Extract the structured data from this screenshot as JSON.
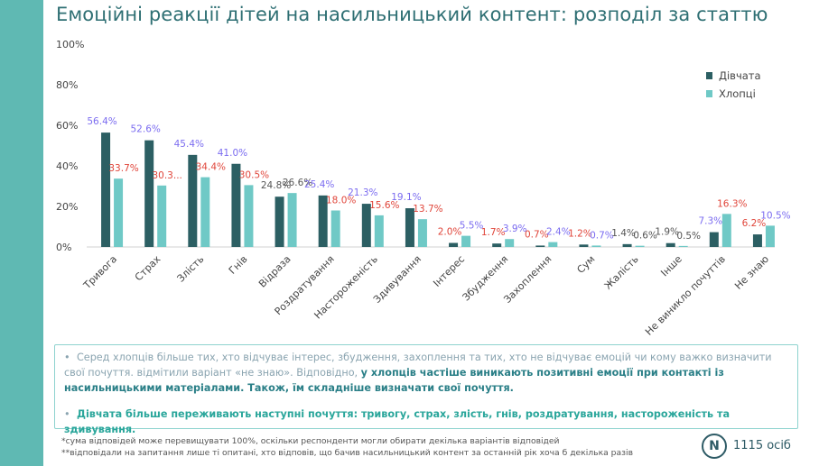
{
  "title": "Емоційні реакції дітей на насильницький контент: розподіл за статтю",
  "chart_data": {
    "type": "bar",
    "ylim": [
      0,
      100
    ],
    "y_ticks": [
      "0%",
      "20%",
      "40%",
      "60%",
      "80%",
      "100%"
    ],
    "y_tick_values": [
      0,
      20,
      40,
      60,
      80,
      100
    ],
    "grid": false,
    "legend_position": "top-right",
    "categories": [
      "Тривога",
      "Страх",
      "Злість",
      "Гнів",
      "Відраза",
      "Роздратування",
      "Настороженість",
      "Здивування",
      "Інтерес",
      "Збудження",
      "Захоплення",
      "Сум",
      "Жалість",
      "Інше",
      "Не виникло почуттів",
      "Не знаю"
    ],
    "series": [
      {
        "name": "Дівчата",
        "color": "#2c5f63",
        "values": [
          56.4,
          52.6,
          45.4,
          41.0,
          24.8,
          25.4,
          21.3,
          19.1,
          2.0,
          1.7,
          0.7,
          1.2,
          1.4,
          1.9,
          7.3,
          6.2
        ],
        "labels": [
          "56.4%",
          "52.6%",
          "45.4%",
          "41.0%",
          "24.8%",
          "25.4%",
          "21.3%",
          "19.1%",
          "2.0%",
          "1.7%",
          "0.7%",
          "1.2%",
          "1.4%",
          "1.9%",
          "7.3%",
          "6.2%"
        ],
        "label_colors": [
          "#7b6cf0",
          "#7b6cf0",
          "#7b6cf0",
          "#7b6cf0",
          "#555555",
          "#7b6cf0",
          "#7b6cf0",
          "#7b6cf0",
          "#e0453a",
          "#e0453a",
          "#e0453a",
          "#e0453a",
          "#555555",
          "#555555",
          "#7b6cf0",
          "#e0453a"
        ]
      },
      {
        "name": "Хлопці",
        "color": "#6fc9c6",
        "values": [
          33.7,
          30.3,
          34.4,
          30.5,
          26.6,
          18.0,
          15.6,
          13.7,
          5.5,
          3.9,
          2.4,
          0.7,
          0.6,
          0.5,
          16.3,
          10.5
        ],
        "labels": [
          "33.7%",
          "30.3...",
          "34.4%",
          "30.5%",
          "26.6%",
          "18.0%",
          "15.6%",
          "13.7%",
          "5.5%",
          "3.9%",
          "2.4%",
          "0.7%",
          "0.6%",
          "0.5%",
          "16.3%",
          "10.5%"
        ],
        "label_colors": [
          "#e0453a",
          "#e0453a",
          "#e0453a",
          "#e0453a",
          "#555555",
          "#e0453a",
          "#e0453a",
          "#e0453a",
          "#7b6cf0",
          "#7b6cf0",
          "#7b6cf0",
          "#7b6cf0",
          "#555555",
          "#555555",
          "#e0453a",
          "#7b6cf0"
        ]
      }
    ]
  },
  "notes": {
    "bullet_marker": "•",
    "bullet1_text": "Серед хлопців більше тих, хто відчуває інтерес, збудження, захоплення та тих, хто не відчуває емоцій чи кому важко визначити свої почуття. відмітили варіант «не знаю». Відповідно, ",
    "bullet1_highlight": "у хлопців частіше виникають позитивні емоції при контакті із насильницькими матеріалами. Також, їм складніше визначати свої почуття.",
    "bullet2_text": "Дівчата більше переживають наступні почуття: тривогу, страх, злість, гнів, роздратування, настороженість та здивування."
  },
  "footnotes": {
    "f1": "*сума відповідей може перевищувати 100%, оскільки респонденти могли обирати декілька варіантів відповідей",
    "f2": "**відповідали на запитання лише ті опитані, хто відповів, що бачив насильницький контент за останній рік хоча б декілька разів"
  },
  "sample": {
    "badge": "N",
    "text": "1115 осіб"
  }
}
